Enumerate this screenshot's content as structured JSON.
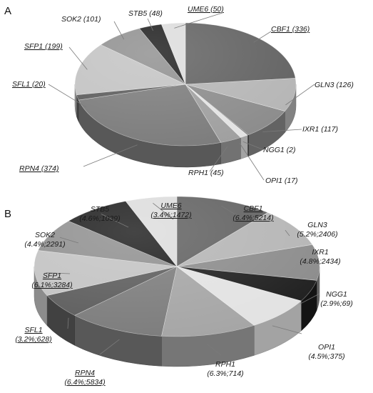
{
  "chart_data": [
    {
      "type": "pie",
      "panel": "A",
      "style": "3d",
      "slices": [
        {
          "name": "CBF1",
          "label": "CBF1 (336)",
          "value": 336,
          "underlined": true,
          "color": "#5f5f5f"
        },
        {
          "name": "GLN3",
          "label": "GLN3 (126)",
          "value": 126,
          "underlined": false,
          "color": "#b4b4b4"
        },
        {
          "name": "IXR1",
          "label": "IXR1 (117)",
          "value": 117,
          "underlined": false,
          "color": "#8a8a8a"
        },
        {
          "name": "NGG1",
          "label": "NGG1 (2)",
          "value": 2,
          "underlined": false,
          "color": "#2a2a2a"
        },
        {
          "name": "OPI1",
          "label": "OPI1 (17)",
          "value": 17,
          "underlined": false,
          "color": "#e2e2e2"
        },
        {
          "name": "RPH1",
          "label": "RPH1 (45)",
          "value": 45,
          "underlined": false,
          "color": "#9e9e9e"
        },
        {
          "name": "RPN4",
          "label": "RPN4 (374)",
          "value": 374,
          "underlined": true,
          "color": "#7a7a7a"
        },
        {
          "name": "SFL1",
          "label": "SFL1 (20)",
          "value": 20,
          "underlined": true,
          "color": "#5a5a5a"
        },
        {
          "name": "SFP1",
          "label": "SFP1 (199)",
          "value": 199,
          "underlined": true,
          "color": "#c2c2c2"
        },
        {
          "name": "SOK2",
          "label": "SOK2 (101)",
          "value": 101,
          "underlined": false,
          "color": "#8e8e8e"
        },
        {
          "name": "STB5",
          "label": "STB5 (48)",
          "value": 48,
          "underlined": false,
          "color": "#1c1c1c"
        },
        {
          "name": "UME6",
          "label": "UME6 (50)",
          "value": 50,
          "underlined": true,
          "color": "#dcdcdc"
        }
      ]
    },
    {
      "type": "pie",
      "panel": "B",
      "style": "3d",
      "slices": [
        {
          "name": "CBF1",
          "label1": "CBF1",
          "label2": "(6.4%;5214)",
          "percent": 6.4,
          "count": 5214,
          "underlined": true,
          "color": "#5f5f5f"
        },
        {
          "name": "GLN3",
          "label1": "GLN3",
          "label2": "(5.2%;2406)",
          "percent": 5.2,
          "count": 2406,
          "underlined": false,
          "color": "#b4b4b4"
        },
        {
          "name": "IXR1",
          "label1": "IXR1",
          "label2": "(4.8%;2434)",
          "percent": 4.8,
          "count": 2434,
          "underlined": false,
          "color": "#8a8a8a"
        },
        {
          "name": "NGG1",
          "label1": "NGG1",
          "label2": "(2.9%;69)",
          "percent": 2.9,
          "count": 69,
          "underlined": false,
          "color": "#1c1c1c"
        },
        {
          "name": "OPI1",
          "label1": "OPI1",
          "label2": "(4.5%;375)",
          "percent": 4.5,
          "count": 375,
          "underlined": false,
          "color": "#e2e2e2"
        },
        {
          "name": "RPH1",
          "label1": "RPH1",
          "label2": "(6.3%;714)",
          "percent": 6.3,
          "count": 714,
          "underlined": false,
          "color": "#a4a4a4"
        },
        {
          "name": "RPN4",
          "label1": "RPN4",
          "label2": "(6.4%;5834)",
          "percent": 6.4,
          "count": 5834,
          "underlined": true,
          "color": "#7a7a7a"
        },
        {
          "name": "SFL1",
          "label1": "SFL1",
          "label2": "(3.2%;628)",
          "percent": 3.2,
          "count": 628,
          "underlined": true,
          "color": "#5a5a5a"
        },
        {
          "name": "SFP1",
          "label1": "SFP1",
          "label2": "(6.1%;3284)",
          "percent": 6.1,
          "count": 3284,
          "underlined": true,
          "color": "#c2c2c2"
        },
        {
          "name": "SOK2",
          "label1": "SOK2",
          "label2": "(4.4%;2291)",
          "percent": 4.4,
          "count": 2291,
          "underlined": false,
          "color": "#8e8e8e"
        },
        {
          "name": "STB5",
          "label1": "STB5",
          "label2": "(4.6%;1039)",
          "percent": 4.6,
          "count": 1039,
          "underlined": false,
          "color": "#1c1c1c"
        },
        {
          "name": "UME6",
          "label1": "UME6",
          "label2": "(3.4%;1472)",
          "percent": 3.4,
          "count": 1472,
          "underlined": true,
          "color": "#dcdcdc"
        }
      ]
    }
  ]
}
